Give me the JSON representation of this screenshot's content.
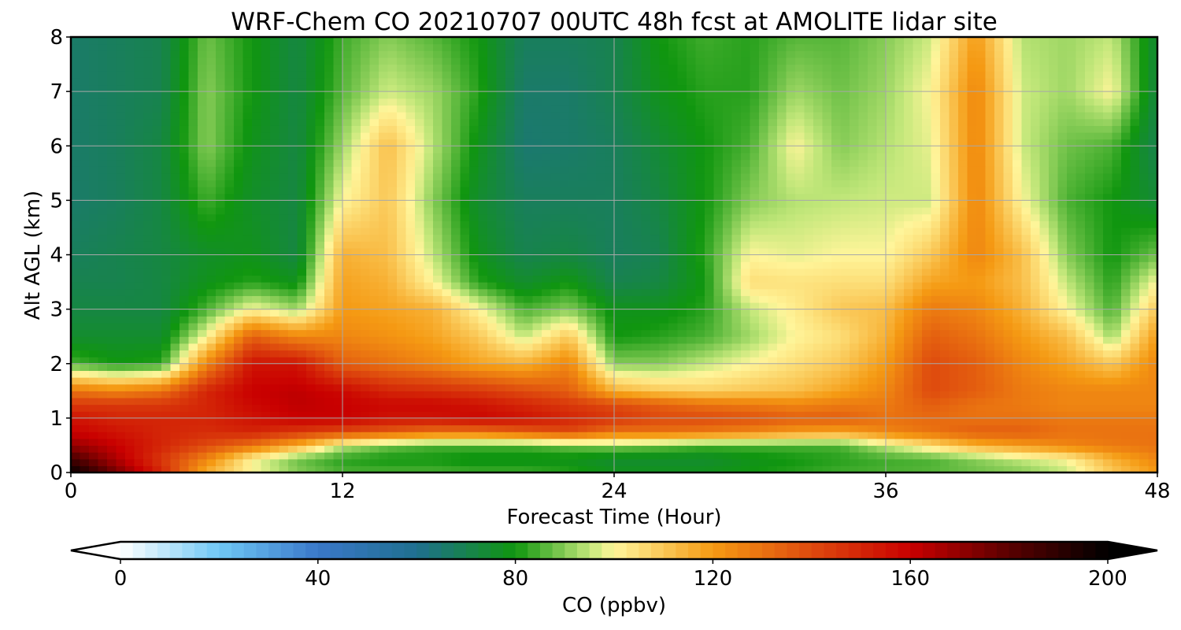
{
  "chart_data": {
    "type": "heatmap",
    "title": "WRF-Chem CO  20210707 00UTC 48h fcst at AMOLITE lidar site",
    "xlabel": "Forecast Time (Hour)",
    "ylabel": "Alt AGL (km)",
    "xlim": [
      0,
      48
    ],
    "ylim": [
      0,
      8
    ],
    "xticks": [
      0,
      12,
      24,
      36,
      48
    ],
    "yticks": [
      0,
      1,
      2,
      3,
      4,
      5,
      6,
      7,
      8
    ],
    "grid": true,
    "x": [
      0,
      2,
      4,
      6,
      8,
      10,
      12,
      14,
      16,
      18,
      20,
      22,
      24,
      26,
      28,
      30,
      32,
      34,
      36,
      38,
      40,
      42,
      44,
      46,
      48
    ],
    "y": [
      0,
      0.25,
      0.5,
      0.75,
      1,
      1.25,
      1.5,
      2,
      2.5,
      3,
      3.5,
      4,
      5,
      6,
      7,
      8
    ],
    "z": [
      [
        200,
        175,
        150,
        115,
        100,
        90,
        85,
        85,
        85,
        84,
        84,
        82,
        78,
        78,
        78,
        80,
        82,
        84,
        85,
        86,
        88,
        90,
        95,
        110,
        120
      ],
      [
        185,
        165,
        145,
        125,
        100,
        88,
        82,
        80,
        80,
        78,
        78,
        78,
        75,
        75,
        75,
        78,
        80,
        82,
        84,
        85,
        90,
        95,
        100,
        115,
        125
      ],
      [
        170,
        160,
        150,
        140,
        130,
        115,
        95,
        88,
        85,
        85,
        85,
        88,
        90,
        88,
        85,
        85,
        85,
        85,
        95,
        105,
        115,
        120,
        125,
        128,
        130
      ],
      [
        160,
        155,
        150,
        148,
        150,
        145,
        140,
        135,
        130,
        130,
        135,
        140,
        130,
        130,
        128,
        125,
        120,
        118,
        125,
        130,
        135,
        135,
        130,
        130,
        130
      ],
      [
        155,
        150,
        150,
        150,
        155,
        160,
        160,
        155,
        155,
        158,
        155,
        150,
        145,
        140,
        140,
        138,
        135,
        135,
        130,
        132,
        130,
        130,
        128,
        128,
        128
      ],
      [
        145,
        145,
        145,
        150,
        158,
        162,
        160,
        158,
        158,
        155,
        150,
        145,
        140,
        135,
        130,
        128,
        125,
        128,
        128,
        135,
        130,
        128,
        125,
        125,
        125
      ],
      [
        130,
        125,
        130,
        150,
        160,
        162,
        158,
        150,
        148,
        145,
        140,
        135,
        115,
        110,
        108,
        110,
        112,
        118,
        125,
        140,
        135,
        128,
        125,
        125,
        125
      ],
      [
        85,
        80,
        82,
        125,
        155,
        155,
        135,
        130,
        125,
        118,
        115,
        125,
        90,
        90,
        95,
        100,
        105,
        110,
        120,
        140,
        135,
        125,
        118,
        110,
        125
      ],
      [
        75,
        75,
        75,
        100,
        135,
        125,
        125,
        122,
        118,
        110,
        95,
        110,
        80,
        82,
        85,
        92,
        100,
        105,
        115,
        135,
        130,
        120,
        112,
        92,
        120
      ],
      [
        72,
        72,
        72,
        85,
        100,
        92,
        120,
        118,
        115,
        100,
        85,
        90,
        78,
        78,
        82,
        95,
        102,
        110,
        112,
        128,
        125,
        115,
        100,
        85,
        110
      ],
      [
        70,
        70,
        72,
        78,
        82,
        78,
        118,
        115,
        100,
        82,
        75,
        80,
        70,
        72,
        80,
        105,
        104,
        105,
        105,
        118,
        120,
        112,
        95,
        82,
        100
      ],
      [
        68,
        70,
        72,
        76,
        78,
        72,
        115,
        112,
        95,
        78,
        70,
        72,
        68,
        70,
        82,
        100,
        98,
        100,
        100,
        110,
        125,
        112,
        90,
        80,
        88
      ],
      [
        66,
        68,
        72,
        84,
        76,
        72,
        100,
        110,
        90,
        75,
        68,
        68,
        68,
        72,
        80,
        90,
        94,
        95,
        96,
        96,
        125,
        100,
        85,
        80,
        74
      ],
      [
        66,
        68,
        72,
        90,
        78,
        72,
        92,
        112,
        94,
        78,
        65,
        66,
        68,
        74,
        80,
        85,
        100,
        90,
        94,
        98,
        125,
        96,
        88,
        85,
        70
      ],
      [
        66,
        68,
        70,
        90,
        80,
        72,
        86,
        96,
        92,
        82,
        66,
        66,
        70,
        78,
        82,
        82,
        92,
        88,
        92,
        100,
        125,
        96,
        92,
        100,
        72
      ],
      [
        66,
        68,
        70,
        88,
        80,
        72,
        84,
        90,
        86,
        80,
        68,
        68,
        70,
        80,
        84,
        82,
        86,
        86,
        90,
        96,
        120,
        94,
        92,
        95,
        74
      ]
    ],
    "colorbar": {
      "label": "CO  (ppbv)",
      "vmin": 0,
      "vmax": 200,
      "ticks": [
        0,
        40,
        80,
        120,
        160,
        200
      ],
      "extend": "both",
      "colormap_stops": [
        {
          "value": 0,
          "color": "#ffffff"
        },
        {
          "value": 20,
          "color": "#6fc8f5"
        },
        {
          "value": 40,
          "color": "#3a78c9"
        },
        {
          "value": 60,
          "color": "#1f6f8f"
        },
        {
          "value": 80,
          "color": "#10960f"
        },
        {
          "value": 95,
          "color": "#c2e77a"
        },
        {
          "value": 100,
          "color": "#fff59a"
        },
        {
          "value": 120,
          "color": "#f59a13"
        },
        {
          "value": 140,
          "color": "#de4a0e"
        },
        {
          "value": 160,
          "color": "#c90000"
        },
        {
          "value": 180,
          "color": "#5a0000"
        },
        {
          "value": 200,
          "color": "#000000"
        }
      ]
    }
  }
}
